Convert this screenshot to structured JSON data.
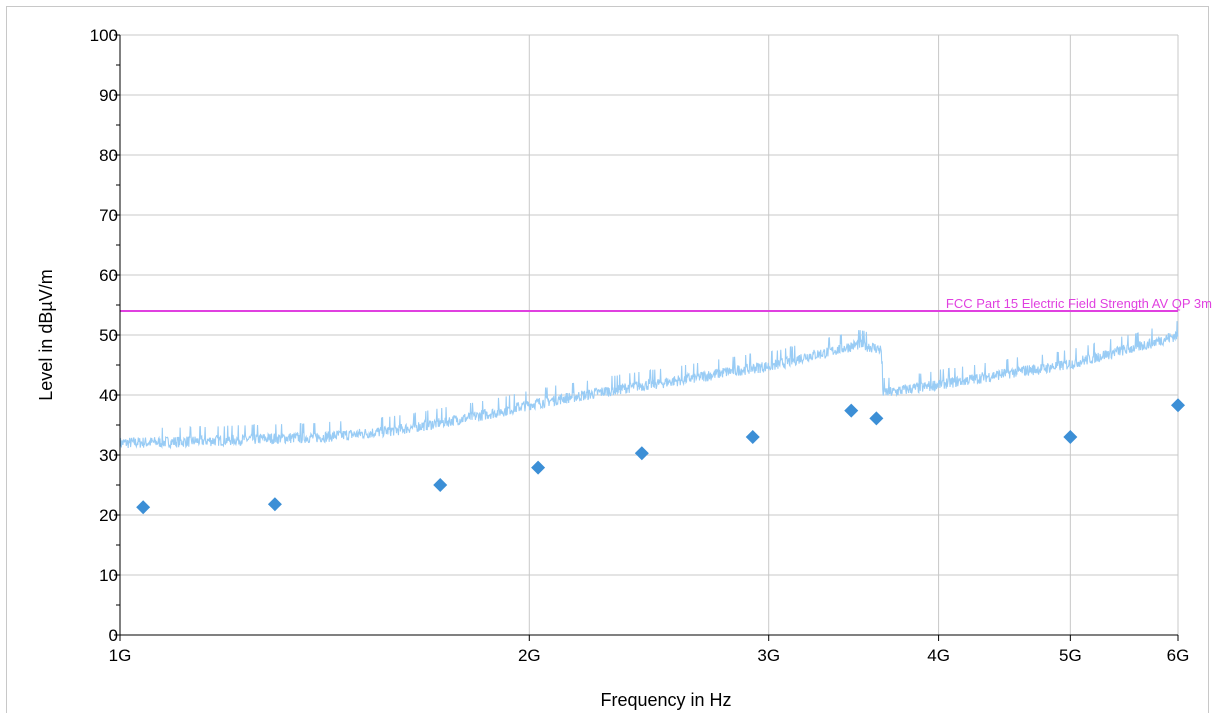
{
  "chart_data": {
    "type": "line",
    "xlabel": "Frequency in Hz",
    "ylabel": "Level in dBµV/m",
    "x_scale": "log",
    "xlim": [
      1000000000,
      6000000000
    ],
    "ylim": [
      0,
      100
    ],
    "grid": true,
    "x_ticks": [
      {
        "value": 1000000000,
        "label": "1G"
      },
      {
        "value": 2000000000,
        "label": "2G"
      },
      {
        "value": 3000000000,
        "label": "3G"
      },
      {
        "value": 4000000000,
        "label": "4G"
      },
      {
        "value": 5000000000,
        "label": "5G"
      },
      {
        "value": 6000000000,
        "label": "6G"
      }
    ],
    "y_ticks": [
      0,
      10,
      20,
      30,
      40,
      50,
      60,
      70,
      80,
      90,
      100
    ],
    "limit_line": {
      "name": "FCC Part 15  Electric Field Strength   AV  QP  3m",
      "value": 54,
      "color": "#e040e0"
    },
    "trace": {
      "color": "#99ccf5",
      "points": [
        [
          1000000000,
          32.0
        ],
        [
          1100000000,
          32.2
        ],
        [
          1200000000,
          32.5
        ],
        [
          1300000000,
          32.8
        ],
        [
          1400000000,
          33.0
        ],
        [
          1500000000,
          33.5
        ],
        [
          1600000000,
          34.2
        ],
        [
          1700000000,
          35.2
        ],
        [
          1800000000,
          36.2
        ],
        [
          1900000000,
          37.2
        ],
        [
          2000000000,
          38.4
        ],
        [
          2100000000,
          39.3
        ],
        [
          2200000000,
          40.0
        ],
        [
          2300000000,
          40.8
        ],
        [
          2400000000,
          41.5
        ],
        [
          2500000000,
          42.0
        ],
        [
          2600000000,
          42.6
        ],
        [
          2700000000,
          43.2
        ],
        [
          2800000000,
          43.9
        ],
        [
          2900000000,
          44.4
        ],
        [
          3000000000,
          44.8
        ],
        [
          3100000000,
          45.5
        ],
        [
          3200000000,
          46.5
        ],
        [
          3300000000,
          47.0
        ],
        [
          3400000000,
          47.8
        ],
        [
          3500000000,
          48.5
        ],
        [
          3600000000,
          47.8
        ],
        [
          3630000000,
          47.5
        ],
        [
          3640000000,
          40.5
        ],
        [
          3700000000,
          40.5
        ],
        [
          3800000000,
          41.0
        ],
        [
          3900000000,
          41.3
        ],
        [
          4000000000,
          41.8
        ],
        [
          4200000000,
          42.5
        ],
        [
          4400000000,
          43.3
        ],
        [
          4600000000,
          44.0
        ],
        [
          4800000000,
          44.5
        ],
        [
          5000000000,
          45.2
        ],
        [
          5200000000,
          46.2
        ],
        [
          5400000000,
          47.2
        ],
        [
          5600000000,
          48.0
        ],
        [
          5800000000,
          49.0
        ],
        [
          6000000000,
          50.0
        ]
      ],
      "noise_amplitude": 1.2
    },
    "markers": {
      "color": "#3c8fd6",
      "points": [
        [
          1040000000,
          21.3
        ],
        [
          1300000000,
          21.8
        ],
        [
          1720000000,
          25.0
        ],
        [
          2030000000,
          27.9
        ],
        [
          2420000000,
          30.3
        ],
        [
          2920000000,
          33.0
        ],
        [
          3450000000,
          37.4
        ],
        [
          3600000000,
          36.1
        ],
        [
          5000000000,
          33.0
        ],
        [
          6000000000,
          38.3
        ]
      ]
    }
  }
}
